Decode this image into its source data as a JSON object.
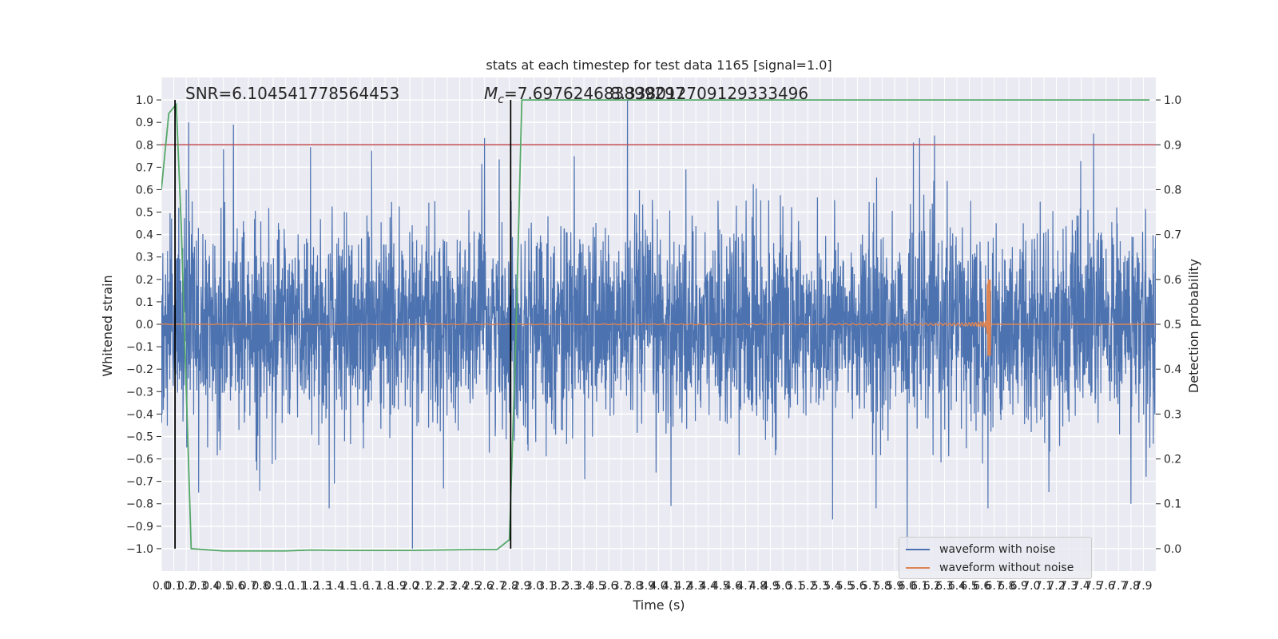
{
  "chart_data": {
    "type": "line",
    "title": "stats at each timestep for test data 1165 [signal=1.0]",
    "xlabel": "Time (s)",
    "ylabel": "Whitened strain",
    "y2label": "Detection probability",
    "xlim": [
      0.0,
      8.0
    ],
    "ylim": [
      -1.1,
      1.1
    ],
    "y2lim": [
      -0.05,
      1.05
    ],
    "grid": true,
    "legend_position": "bottom-right",
    "x_ticks": [
      "0.0",
      "0.1",
      "0.2",
      "0.3",
      "0.4",
      "0.5",
      "0.6",
      "0.7",
      "0.8",
      "0.9",
      "1.0",
      "1.1",
      "1.2",
      "1.3",
      "1.4",
      "1.5",
      "1.6",
      "1.7",
      "1.8",
      "1.9",
      "2.0",
      "2.1",
      "2.2",
      "2.3",
      "2.4",
      "2.5",
      "2.6",
      "2.7",
      "2.8",
      "2.9",
      "3.0",
      "3.1",
      "3.2",
      "3.3",
      "3.4",
      "3.5",
      "3.6",
      "3.7",
      "3.8",
      "3.9",
      "4.0",
      "4.1",
      "4.2",
      "4.3",
      "4.4",
      "4.5",
      "4.6",
      "4.7",
      "4.8",
      "4.9",
      "5.0",
      "5.1",
      "5.2",
      "5.3",
      "5.4",
      "5.5",
      "5.6",
      "5.7",
      "5.8",
      "5.9",
      "6.0",
      "6.1",
      "6.2",
      "6.3",
      "6.4",
      "6.5",
      "6.6",
      "6.7",
      "6.8",
      "6.9",
      "7.0",
      "7.1",
      "7.2",
      "7.3",
      "7.4",
      "7.5",
      "7.6",
      "7.7",
      "7.8",
      "7.9"
    ],
    "y_ticks": [
      "1.0",
      "0.9",
      "0.8",
      "0.7",
      "0.6",
      "0.5",
      "0.4",
      "0.3",
      "0.2",
      "0.1",
      "0.0",
      "−0.1",
      "−0.2",
      "−0.3",
      "−0.4",
      "−0.5",
      "−0.6",
      "−0.7",
      "−0.8",
      "−0.9",
      "−1.0"
    ],
    "y2_ticks": [
      "1.0",
      "0.9",
      "0.8",
      "0.7",
      "0.6",
      "0.5",
      "0.4",
      "0.3",
      "0.2",
      "0.1",
      "0.0"
    ],
    "annotations": {
      "snr": "SNR=6.104541778564453",
      "mc_symbol": "M",
      "mc_sub": "c",
      "mc_value": "=7.697624683899297",
      "mc_overlap": "8.338012709129333496"
    },
    "series": [
      {
        "name": "waveform with noise",
        "color": "#4c72b0",
        "kind": "noise",
        "envelope_typical": 0.4,
        "spikes": [
          {
            "x": 0.2,
            "y": 0.6
          },
          {
            "x": 0.22,
            "y": 0.9
          },
          {
            "x": 0.3,
            "y": 0.85
          },
          {
            "x": 0.5,
            "y": 0.78
          },
          {
            "x": 1.2,
            "y": 0.79
          },
          {
            "x": 2.6,
            "y": 0.83
          },
          {
            "x": 3.75,
            "y": 1.0
          },
          {
            "x": 6.05,
            "y": 0.81
          },
          {
            "x": 6.1,
            "y": 0.83
          },
          {
            "x": 7.5,
            "y": 0.85
          },
          {
            "x": 0.3,
            "y": -0.75
          },
          {
            "x": 1.35,
            "y": -0.82
          },
          {
            "x": 2.02,
            "y": -1.0
          },
          {
            "x": 4.1,
            "y": -0.81
          },
          {
            "x": 5.4,
            "y": -0.87
          },
          {
            "x": 5.75,
            "y": -0.82
          },
          {
            "x": 6.0,
            "y": -1.0
          },
          {
            "x": 6.65,
            "y": -0.82
          },
          {
            "x": 7.8,
            "y": -0.8
          }
        ]
      },
      {
        "name": "waveform without noise",
        "color": "#dd8452",
        "kind": "chirp",
        "merger_time": 6.67,
        "peak_upper": 0.2,
        "peak_lower": -0.14
      },
      {
        "name": "",
        "color": "#55a868",
        "kind": "probability",
        "axis": "y2",
        "x": [
          0.0,
          0.06,
          0.12,
          0.16,
          0.24,
          0.5,
          1.0,
          1.2,
          1.5,
          2.0,
          2.5,
          2.7,
          2.8,
          2.85,
          2.9,
          3.0,
          4.0,
          5.0,
          6.0,
          7.0,
          7.95
        ],
        "y": [
          0.8,
          0.97,
          0.99,
          0.72,
          0.0,
          -0.005,
          -0.005,
          -0.003,
          -0.004,
          -0.004,
          -0.002,
          -0.002,
          0.02,
          0.45,
          1.0,
          1.0,
          1.0,
          1.0,
          1.0,
          1.0,
          1.0
        ]
      }
    ],
    "threshold": {
      "y2": 0.9,
      "color": "#c44e52"
    },
    "vlines": [
      {
        "x": 0.11,
        "color": "#000000"
      },
      {
        "x": 2.81,
        "color": "#000000"
      }
    ]
  }
}
